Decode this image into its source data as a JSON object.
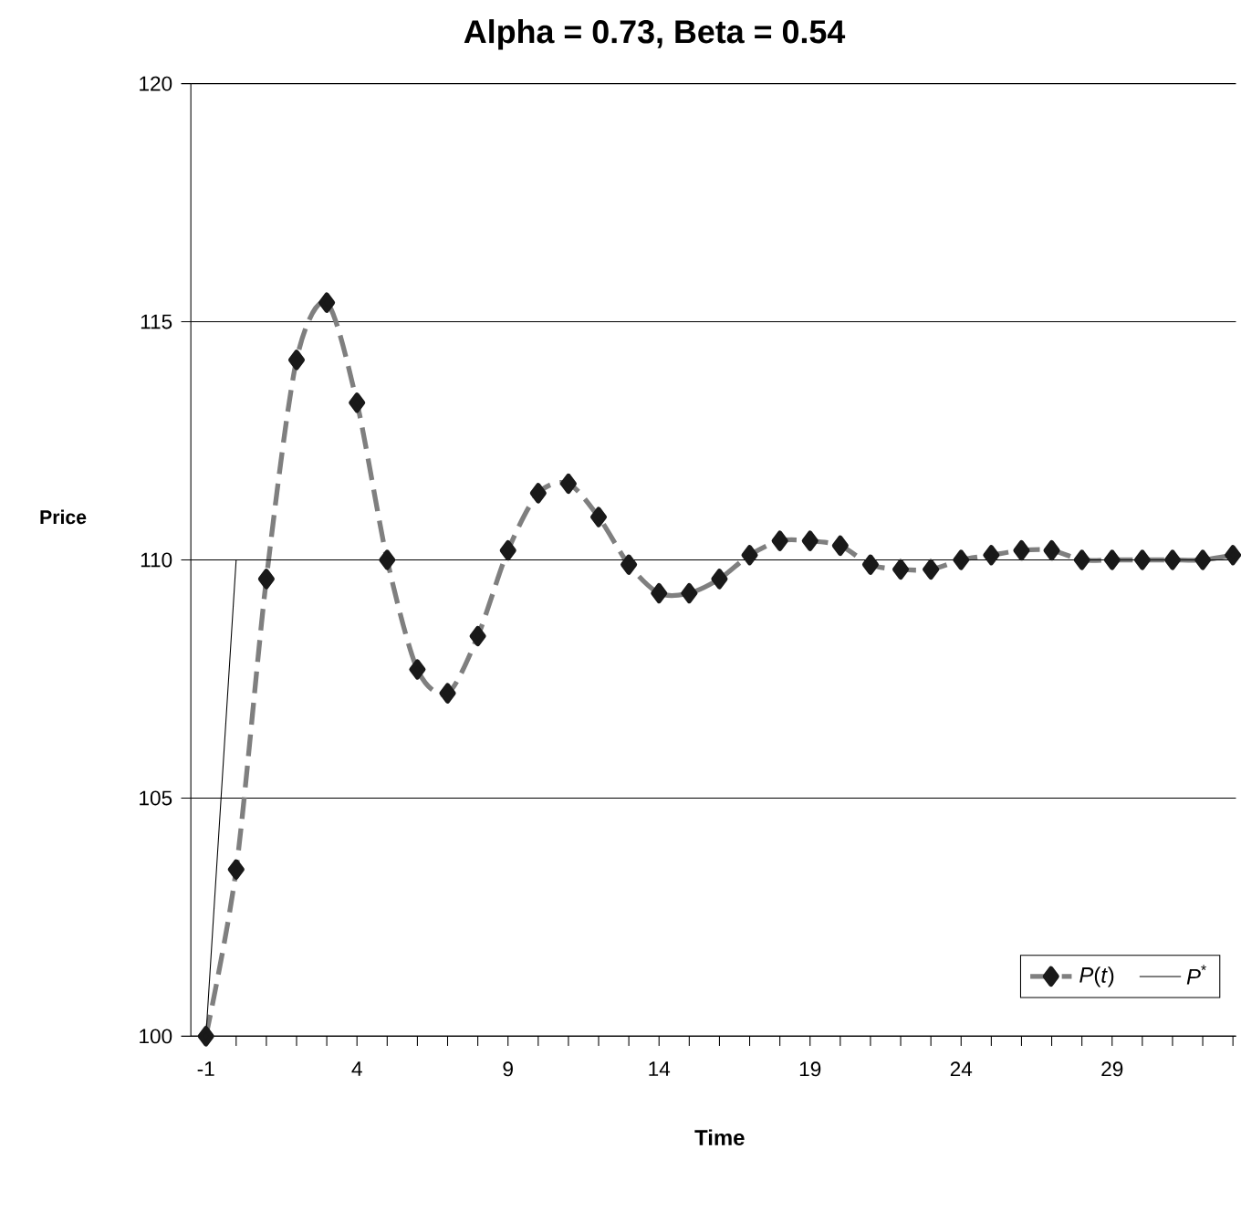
{
  "chart_data": {
    "type": "line",
    "title": "Alpha = 0.73, Beta = 0.54",
    "xlabel": "Time",
    "ylabel": "Price",
    "categories": [
      "-1",
      null,
      null,
      null,
      null,
      "4",
      null,
      null,
      null,
      null,
      "9",
      null,
      null,
      null,
      null,
      "14",
      null,
      null,
      null,
      null,
      "19",
      null,
      null,
      null,
      null,
      "24",
      null,
      null,
      null,
      null,
      "29",
      null,
      null,
      null,
      null
    ],
    "series": [
      {
        "name": "*P*(*t*)",
        "color": "#7f7f7f",
        "marker": "diamond",
        "line_style": "dashed",
        "values": [
          100,
          103.5,
          109.6,
          114.2,
          115.4,
          113.3,
          110.0,
          107.7,
          107.2,
          108.4,
          110.2,
          111.4,
          111.6,
          110.9,
          109.9,
          109.3,
          109.3,
          109.6,
          110.1,
          110.4,
          110.4,
          110.3,
          109.9,
          109.8,
          109.8,
          110.0,
          110.1,
          110.2,
          110.2,
          110.0,
          110.0,
          110.0,
          110.0,
          110.0,
          110.1
        ]
      },
      {
        "name": "*P*$^{*}$",
        "color": "#000000",
        "marker": "none",
        "line_style": "solid",
        "values": [
          100,
          110,
          110,
          110,
          110,
          110,
          110,
          110,
          110,
          110,
          110,
          110,
          110,
          110,
          110,
          110,
          110,
          110,
          110,
          110,
          110,
          110,
          110,
          110,
          110,
          110,
          110,
          110,
          110,
          110,
          110,
          110,
          110,
          110,
          110
        ]
      }
    ],
    "ylim": [
      100,
      120
    ],
    "yticks": [
      100,
      105,
      110,
      115,
      120
    ],
    "grid": "y",
    "legend": "bottom right"
  }
}
